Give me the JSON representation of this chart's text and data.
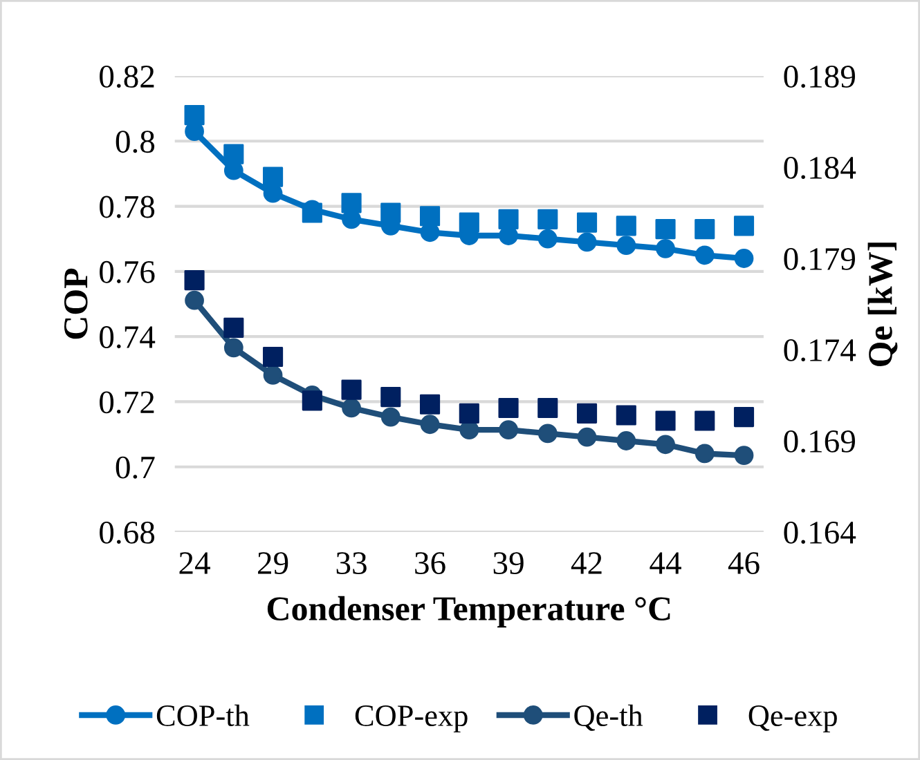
{
  "chart_data": {
    "type": "line",
    "xlabel": "Condenser Temperature °C",
    "ylabel": "COP",
    "y2label": "Qe [kW]",
    "categories": [
      "24",
      null,
      "29",
      null,
      "33",
      null,
      "36",
      null,
      "39",
      null,
      "42",
      null,
      "44",
      null,
      "46"
    ],
    "series": [
      {
        "name": "COP-th",
        "color": "#0070c0",
        "marker": "circle",
        "values": [
          0.803,
          0.791,
          0.784,
          0.779,
          0.776,
          0.774,
          0.772,
          0.771,
          0.771,
          0.77,
          0.769,
          0.768,
          0.767,
          0.765,
          0.764
        ]
      },
      {
        "name": "COP-exp",
        "color": "#0070c0",
        "type": "scatter",
        "marker": "square",
        "values": [
          0.808,
          0.796,
          0.789,
          0.778,
          0.781,
          0.778,
          0.777,
          0.775,
          0.776,
          0.776,
          0.775,
          0.774,
          0.773,
          0.773,
          0.774
        ]
      },
      {
        "name": "Qe-th",
        "color": "#1f4e79",
        "marker": "circle",
        "axis": "y2",
        "values": [
          0.1767,
          0.1741,
          0.1726,
          0.1715,
          0.1708,
          0.1703,
          0.1699,
          0.1696,
          0.1696,
          0.1694,
          0.1692,
          0.169,
          0.1688,
          0.1683,
          0.1682
        ]
      },
      {
        "name": "Qe-exp",
        "color": "#002060",
        "type": "scatter",
        "marker": "square",
        "axis": "y2",
        "values": [
          0.1778,
          0.1752,
          0.1736,
          0.1712,
          0.1718,
          0.1714,
          0.171,
          0.1705,
          0.1708,
          0.1708,
          0.1705,
          0.1704,
          0.1701,
          0.1701,
          0.1703
        ]
      }
    ],
    "ylim": [
      0.68,
      0.82
    ],
    "yticks": [
      {
        "value": 0.68,
        "label": "0.68"
      },
      {
        "value": 0.7,
        "label": "0.7"
      },
      {
        "value": 0.72,
        "label": "0.72"
      },
      {
        "value": 0.74,
        "label": "0.74"
      },
      {
        "value": 0.76,
        "label": "0.76"
      },
      {
        "value": 0.78,
        "label": "0.78"
      },
      {
        "value": 0.8,
        "label": "0.8"
      },
      {
        "value": 0.82,
        "label": "0.82"
      }
    ],
    "y2lim": [
      0.164,
      0.189
    ],
    "y2ticks": [
      0.164,
      0.169,
      0.174,
      0.179,
      0.184,
      0.189
    ],
    "grid": "y",
    "legend": "bottom"
  }
}
